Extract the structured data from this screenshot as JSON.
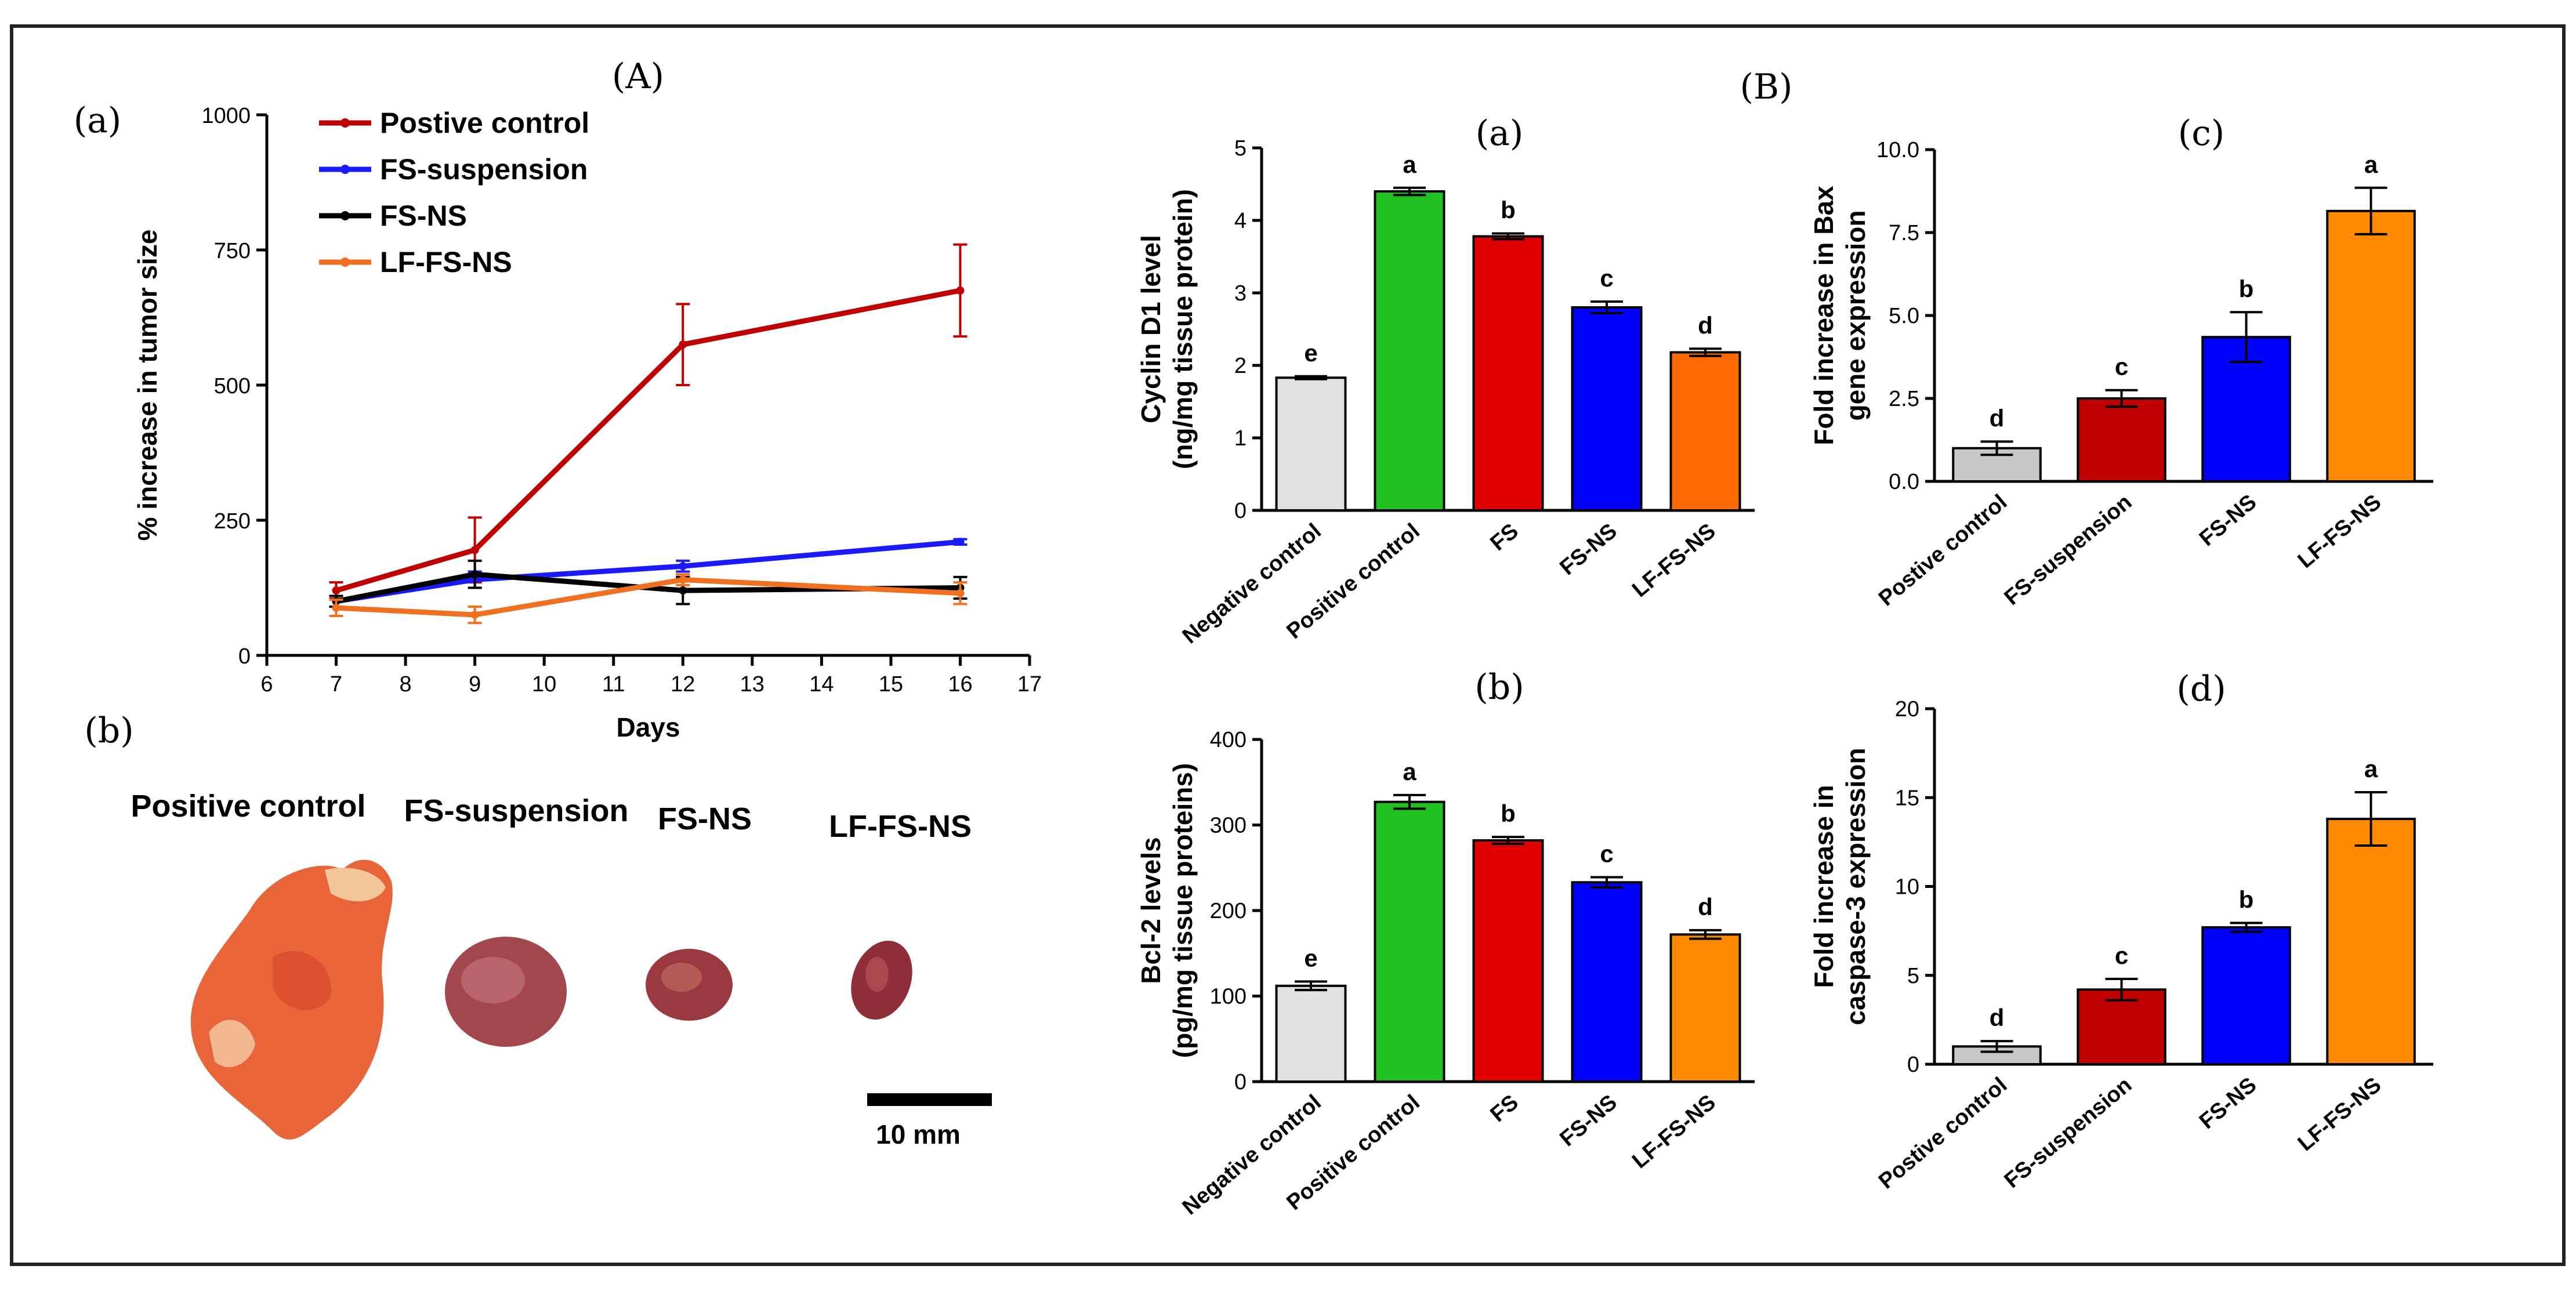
{
  "labels": {
    "A": "(A)",
    "B": "(B)",
    "Aa": "(a)",
    "Ab": "(b)"
  },
  "photo": {
    "labels": [
      "Positive control",
      "FS-suspension",
      "FS-NS",
      "LF-FS-NS"
    ],
    "scale_label": "10 mm"
  },
  "chart_data": [
    {
      "id": "A-a",
      "type": "line",
      "panel_label": "(a)",
      "xlabel": "Days",
      "ylabel": "% increase in tumor size",
      "xlim": [
        6,
        17
      ],
      "ylim": [
        0,
        1000
      ],
      "xticks": [
        6,
        7,
        8,
        9,
        10,
        11,
        12,
        13,
        14,
        15,
        16,
        17
      ],
      "yticks": [
        0,
        250,
        500,
        750,
        1000
      ],
      "legend_position": "top-left",
      "x": [
        7,
        9,
        12,
        16
      ],
      "series": [
        {
          "name": "Postive control",
          "color": "#c00000",
          "values": [
            120,
            195,
            575,
            675
          ],
          "errors": [
            15,
            60,
            75,
            85
          ]
        },
        {
          "name": "FS-suspension",
          "color": "#1a1aff",
          "values": [
            100,
            140,
            165,
            210
          ],
          "errors": [
            10,
            15,
            10,
            5
          ]
        },
        {
          "name": "FS-NS",
          "color": "#000000",
          "values": [
            100,
            150,
            120,
            125
          ],
          "errors": [
            10,
            25,
            25,
            20
          ]
        },
        {
          "name": "LF-FS-NS",
          "color": "#f07020",
          "values": [
            88,
            75,
            140,
            115
          ],
          "errors": [
            15,
            15,
            10,
            20
          ]
        }
      ]
    },
    {
      "id": "B-a",
      "type": "bar",
      "panel_label": "(a)",
      "ylabel_lines": [
        "Cyclin D1 level",
        "(ng/mg tissue protein)"
      ],
      "ylim": [
        0,
        5
      ],
      "yticks": [
        0,
        1,
        2,
        3,
        4,
        5
      ],
      "categories": [
        "Negative control",
        "Positive control",
        "FS",
        "FS-NS",
        "LF-FS-NS"
      ],
      "values": [
        1.83,
        4.4,
        3.78,
        2.8,
        2.18
      ],
      "errors": [
        0.02,
        0.05,
        0.04,
        0.08,
        0.05
      ],
      "letters": [
        "e",
        "a",
        "b",
        "c",
        "d"
      ],
      "colors": [
        "#e0e0e0",
        "#1fc01f",
        "#e00000",
        "#0000ff",
        "#ff6a00"
      ]
    },
    {
      "id": "B-b",
      "type": "bar",
      "panel_label": "(b)",
      "ylabel_lines": [
        "Bcl-2 levels",
        "(pg/mg tissue proteins)"
      ],
      "ylim": [
        0,
        400
      ],
      "yticks": [
        0,
        100,
        200,
        300,
        400
      ],
      "categories": [
        "Negative control",
        "Positive control",
        "FS",
        "FS-NS",
        "LF-FS-NS"
      ],
      "values": [
        112,
        327,
        282,
        233,
        172
      ],
      "errors": [
        5,
        8,
        4,
        6,
        5
      ],
      "letters": [
        "e",
        "a",
        "b",
        "c",
        "d"
      ],
      "colors": [
        "#e0e0e0",
        "#1fc01f",
        "#e00000",
        "#0000ff",
        "#ff8a00"
      ]
    },
    {
      "id": "B-c",
      "type": "bar",
      "panel_label": "(c)",
      "ylabel_lines": [
        "Fold increase in Bax",
        "gene expression"
      ],
      "ylim": [
        0,
        10
      ],
      "yticks": [
        0,
        2.5,
        5,
        7.5,
        10
      ],
      "ytick_labels": [
        "0.0",
        "2.5",
        "5.0",
        "7.5",
        "10.0"
      ],
      "categories": [
        "Postive control",
        "FS-suspension",
        "FS-NS",
        "LF-FS-NS"
      ],
      "values": [
        1.0,
        2.5,
        4.35,
        8.15
      ],
      "errors": [
        0.2,
        0.25,
        0.75,
        0.7
      ],
      "letters": [
        "d",
        "c",
        "b",
        "a"
      ],
      "colors": [
        "#c8c8c8",
        "#c00000",
        "#0000ff",
        "#ff8a00"
      ]
    },
    {
      "id": "B-d",
      "type": "bar",
      "panel_label": "(d)",
      "ylabel_lines": [
        "Fold increase in",
        "caspase-3 expression"
      ],
      "ylim": [
        0,
        20
      ],
      "yticks": [
        0,
        5,
        10,
        15,
        20
      ],
      "categories": [
        "Postive control",
        "FS-suspension",
        "FS-NS",
        "LF-FS-NS"
      ],
      "values": [
        1.0,
        4.2,
        7.7,
        13.8
      ],
      "errors": [
        0.3,
        0.6,
        0.25,
        1.5
      ],
      "letters": [
        "d",
        "c",
        "b",
        "a"
      ],
      "colors": [
        "#c8c8c8",
        "#c00000",
        "#0000ff",
        "#ff8a00"
      ]
    }
  ]
}
